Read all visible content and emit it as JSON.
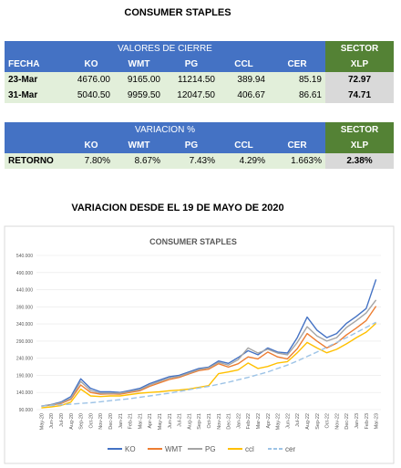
{
  "title": "CONSUMER STAPLES",
  "table1": {
    "header": "VALORES DE CIERRE",
    "sector": "SECTOR",
    "columns": [
      "FECHA",
      "KO",
      "WMT",
      "PG",
      "CCL",
      "CER",
      "XLP"
    ],
    "rows": [
      [
        "23-Mar",
        "4676.00",
        "9165.00",
        "11214.50",
        "389.94",
        "85.19",
        "72.97"
      ],
      [
        "31-Mar",
        "5040.50",
        "9959.50",
        "12047.50",
        "406.67",
        "86.61",
        "74.71"
      ]
    ]
  },
  "table2": {
    "header": "VARIACION %",
    "sector": "SECTOR",
    "columns": [
      "KO",
      "WMT",
      "PG",
      "CCL",
      "CER",
      "XLP"
    ],
    "rows": [
      [
        "RETORNO",
        "7.80%",
        "8.67%",
        "7.43%",
        "4.29%",
        "1.663%",
        "2.38%"
      ]
    ]
  },
  "subtitle": "VARIACION DESDE EL 19 DE MAYO DE 2020",
  "chart_data": {
    "type": "line",
    "title": "CONSUMER STAPLES",
    "categories": [
      "May-20",
      "Jun-20",
      "Jul-20",
      "Aug-20",
      "Sep-20",
      "Oct-20",
      "Nov-20",
      "Dec-20",
      "Jan-21",
      "Feb-21",
      "Mar-21",
      "Apr-21",
      "May-21",
      "Jun-21",
      "Jul-21",
      "Aug-21",
      "Sep-21",
      "Oct-21",
      "Nov-21",
      "Dec-21",
      "Jan-22",
      "Feb-22",
      "Mar-22",
      "Apr-22",
      "May-22",
      "Jun-22",
      "Jul-22",
      "Aug-22",
      "Sep-22",
      "Oct-22",
      "Nov-22",
      "Dec-22",
      "Jan-23",
      "Feb-23",
      "Mar-23"
    ],
    "ylim": [
      90,
      540
    ],
    "yticks": [
      {
        "value": 90,
        "label": "90.000"
      },
      {
        "value": 140,
        "label": "140.000"
      },
      {
        "value": 190,
        "label": "190.000"
      },
      {
        "value": 240,
        "label": "240.000"
      },
      {
        "value": 290,
        "label": "290.000"
      },
      {
        "value": 340,
        "label": "340.000"
      },
      {
        "value": 390,
        "label": "390.000"
      },
      {
        "value": 440,
        "label": "440.000"
      },
      {
        "value": 490,
        "label": "490.000"
      },
      {
        "value": 540,
        "label": "540.000"
      }
    ],
    "grid": true,
    "series": [
      {
        "name": "KO",
        "color": "#4472c4",
        "values": [
          100,
          105,
          112,
          128,
          180,
          152,
          142,
          142,
          140,
          146,
          152,
          166,
          176,
          186,
          190,
          200,
          210,
          214,
          232,
          225,
          242,
          262,
          250,
          270,
          258,
          255,
          300,
          360,
          322,
          300,
          312,
          342,
          362,
          385,
          470
        ]
      },
      {
        "name": "WMT",
        "color": "#ed7d31",
        "values": [
          100,
          103,
          108,
          120,
          162,
          140,
          135,
          136,
          135,
          140,
          145,
          158,
          168,
          178,
          184,
          194,
          204,
          208,
          224,
          214,
          224,
          244,
          238,
          258,
          244,
          238,
          268,
          312,
          290,
          270,
          284,
          308,
          328,
          350,
          392
        ]
      },
      {
        "name": "PG",
        "color": "#a5a5a5",
        "values": [
          100,
          104,
          110,
          123,
          172,
          146,
          138,
          138,
          138,
          143,
          148,
          162,
          172,
          182,
          187,
          197,
          207,
          212,
          228,
          220,
          236,
          270,
          255,
          266,
          255,
          250,
          286,
          332,
          305,
          290,
          300,
          330,
          350,
          372,
          410
        ]
      },
      {
        "name": "ccl",
        "color": "#ffc000",
        "values": [
          95,
          98,
          102,
          112,
          150,
          130,
          128,
          130,
          130,
          134,
          138,
          140,
          142,
          145,
          147,
          150,
          155,
          160,
          195,
          200,
          206,
          226,
          210,
          216,
          226,
          230,
          256,
          286,
          270,
          256,
          266,
          282,
          300,
          316,
          342
        ]
      },
      {
        "name": "cer",
        "color": "#9dc3e6",
        "dashed": true,
        "values": [
          100,
          102,
          104,
          106,
          108,
          110,
          113,
          116,
          119,
          122,
          126,
          130,
          134,
          138,
          143,
          148,
          153,
          158,
          164,
          170,
          177,
          184,
          192,
          200,
          210,
          220,
          232,
          245,
          258,
          272,
          286,
          300,
          315,
          330,
          345
        ]
      }
    ]
  }
}
